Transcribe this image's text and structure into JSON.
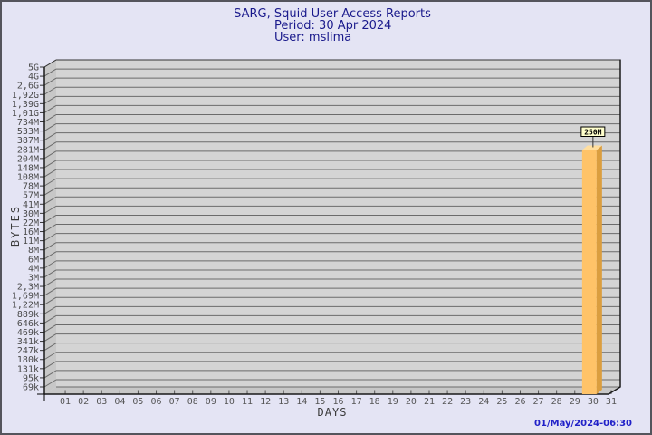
{
  "header": {
    "title": "SARG, Squid User Access Reports",
    "period": "Period: 30 Apr 2024",
    "user": "User: mslima"
  },
  "footer": {
    "timestamp": "01/May/2024-06:30"
  },
  "chart_data": {
    "type": "bar",
    "title": "SARG, Squid User Access Reports",
    "subtitle": "Period: 30 Apr 2024 — User: mslima",
    "xlabel": "DAYS",
    "ylabel": "BYTES",
    "y_scale": "log",
    "y_tick_labels_top_to_bottom": [
      "5G",
      "4G",
      "2,6G",
      "1,92G",
      "1,39G",
      "1,01G",
      "734M",
      "533M",
      "387M",
      "281M",
      "204M",
      "148M",
      "108M",
      "78M",
      "57M",
      "41M",
      "30M",
      "22M",
      "16M",
      "11M",
      "8M",
      "6M",
      "4M",
      "3M",
      "2,3M",
      "1,69M",
      "1,22M",
      "889k",
      "646k",
      "469k",
      "341k",
      "247k",
      "180k",
      "131k",
      "95k",
      "69k"
    ],
    "y_axis_top_value": "5G",
    "y_axis_bottom_value": "69k",
    "categories": [
      "01",
      "02",
      "03",
      "04",
      "05",
      "06",
      "07",
      "08",
      "09",
      "10",
      "11",
      "12",
      "13",
      "14",
      "15",
      "16",
      "17",
      "18",
      "19",
      "20",
      "21",
      "22",
      "23",
      "24",
      "25",
      "26",
      "27",
      "28",
      "29",
      "30",
      "31"
    ],
    "bars": [
      {
        "category": "30",
        "value": "250M",
        "label": "250M"
      }
    ],
    "legend": null,
    "grid": "horizontal",
    "colors": {
      "background": "#E4E4F4",
      "plot_bg": "#D4D4D4",
      "wall": "#C7C7C7",
      "grid_line": "#6B6B6B",
      "plot_edge": "#1A1A1A",
      "tick_text": "#4A4A4A",
      "bar_front": "#FFC368",
      "bar_side": "#DB9E3F",
      "bar_top": "#FFDE9E",
      "value_box_bg": "#FFFFCC",
      "value_box_border": "#000000",
      "title_color": "#1A1A8C",
      "timestamp_color": "#2121C8"
    }
  }
}
